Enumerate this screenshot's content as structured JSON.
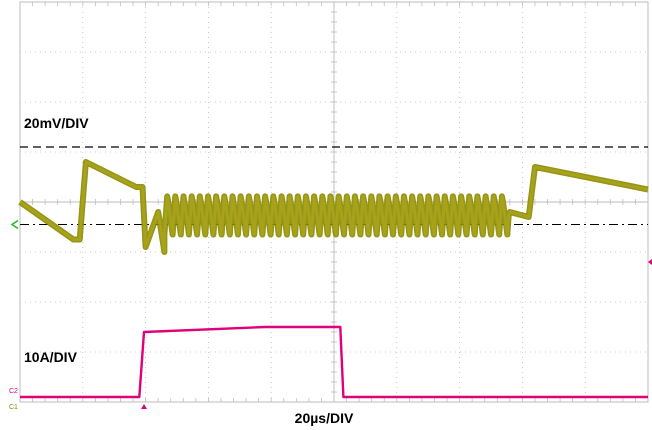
{
  "chart_data": {
    "type": "line",
    "title": "",
    "annotations": {
      "voltage_scale": "20mV/DIV",
      "current_scale": "10A/DIV",
      "time_scale": "20µs/DIV"
    },
    "grid": true,
    "x_divisions": 10,
    "y_divisions": 8,
    "x_unit": "µs",
    "x_per_div": 20,
    "xlim": [
      0,
      200
    ],
    "channel_tags": [
      "C2",
      "C1"
    ],
    "colors": {
      "voltage": "#8a8a00",
      "voltage_fill": "#a7a21a",
      "current": "#e0007a",
      "grid": "#bdbdbd",
      "dashed_level": "#000000",
      "ground_marker": "#22bb22",
      "trigger_marker": "#e0007a"
    },
    "series": [
      {
        "channel": "voltage",
        "y_unit": "mV",
        "y_per_div": 20,
        "points": [
          [
            0,
            0
          ],
          [
            17,
            -15
          ],
          [
            19,
            -15
          ],
          [
            21,
            16
          ],
          [
            37,
            6
          ],
          [
            39,
            6
          ],
          [
            40,
            -18
          ],
          [
            44,
            -4
          ],
          [
            46,
            -20
          ]
        ],
        "ripple": {
          "start": 46,
          "end": 156,
          "center": -5,
          "amplitude": 8,
          "period": 2.6
        },
        "tail": [
          [
            156,
            -4
          ],
          [
            162,
            -6
          ],
          [
            164,
            14
          ],
          [
            200,
            5
          ]
        ],
        "reference_levels": {
          "dashed": 22,
          "dash_dot": -9
        }
      },
      {
        "channel": "current",
        "y_unit": "A",
        "y_per_div": 10,
        "points": [
          [
            0,
            -39
          ],
          [
            38,
            -39
          ],
          [
            39.5,
            -26
          ],
          [
            78,
            -25
          ],
          [
            102,
            -25
          ],
          [
            103,
            -39
          ],
          [
            200,
            -39
          ]
        ]
      }
    ]
  }
}
